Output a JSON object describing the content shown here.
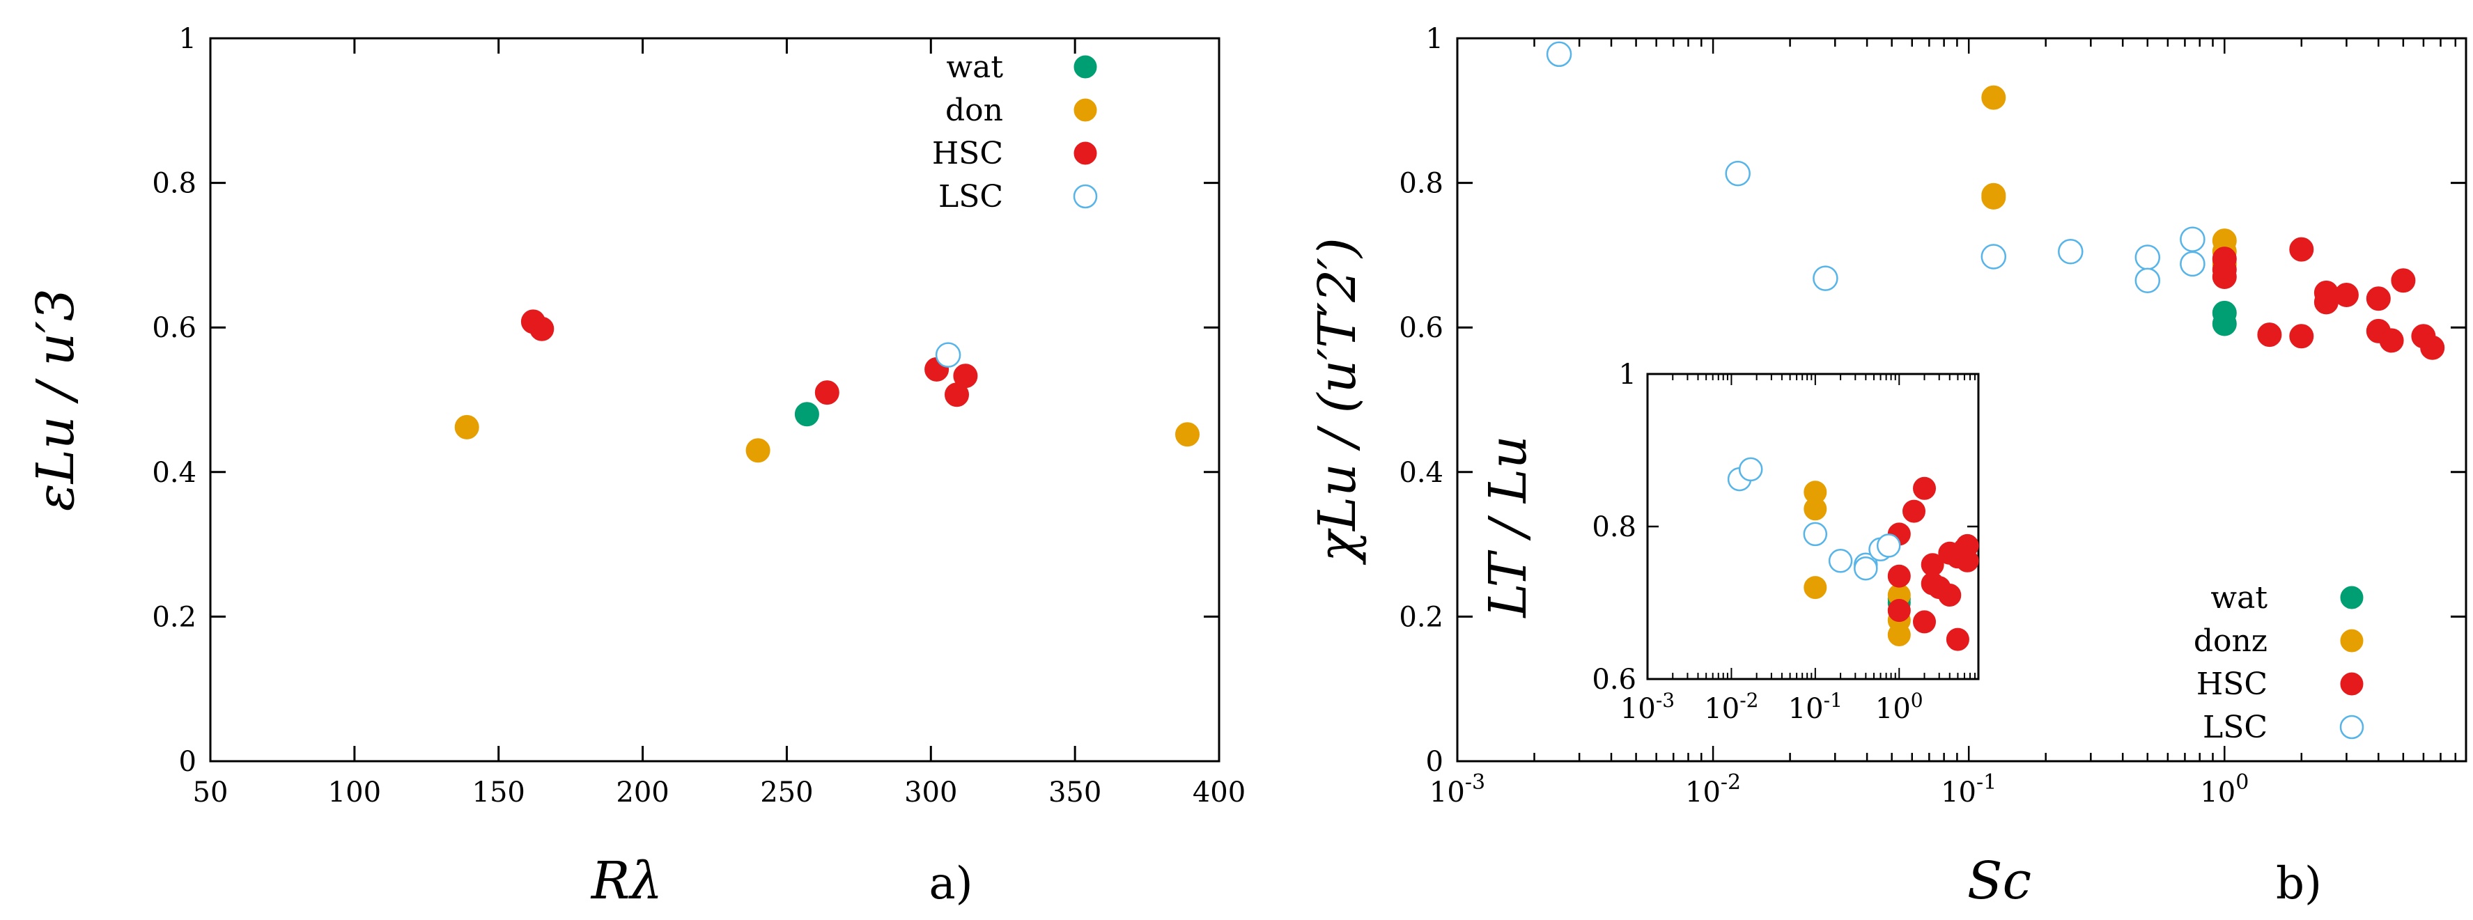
{
  "colors": {
    "wat": "#009e73",
    "don": "#e69f00",
    "HSC": "#e41a1c",
    "LSC": "#56b4e9"
  },
  "chart_data": [
    {
      "id": "a",
      "type": "scatter",
      "panel_label": "a)",
      "xlabel": "Rλ",
      "ylabel": "εLu / u′3",
      "xscale": "linear",
      "xlim": [
        50,
        400
      ],
      "ylim": [
        0,
        1
      ],
      "xticks": [
        "50",
        "100",
        "150",
        "200",
        "250",
        "300",
        "350",
        "400"
      ],
      "yticks": [
        "0",
        "0.2",
        "0.4",
        "0.6",
        "0.8",
        "1"
      ],
      "legend": {
        "position": "top-right",
        "entries": [
          "wat",
          "don",
          "HSC",
          "LSC"
        ]
      },
      "series": [
        {
          "name": "wat",
          "filled": true,
          "points": [
            [
              257,
              0.48
            ]
          ]
        },
        {
          "name": "don",
          "filled": true,
          "points": [
            [
              139,
              0.462
            ],
            [
              240,
              0.43
            ],
            [
              389,
              0.452
            ]
          ]
        },
        {
          "name": "HSC",
          "filled": true,
          "points": [
            [
              162,
              0.608
            ],
            [
              165,
              0.598
            ],
            [
              264,
              0.51
            ],
            [
              302,
              0.542
            ],
            [
              309,
              0.507
            ],
            [
              312,
              0.533
            ]
          ]
        },
        {
          "name": "LSC",
          "filled": false,
          "points": [
            [
              306,
              0.562
            ]
          ]
        }
      ]
    },
    {
      "id": "b",
      "type": "scatter",
      "panel_label": "b)",
      "xlabel": "Sc",
      "ylabel": "χLu / (u′T′2′)",
      "xscale": "log",
      "xlim": [
        0.001,
        8.8
      ],
      "ylim": [
        0,
        1
      ],
      "xticks": [
        {
          "base": "10",
          "exp": "-3",
          "v": 0.001
        },
        {
          "base": "10",
          "exp": "-2",
          "v": 0.01
        },
        {
          "base": "10",
          "exp": "-1",
          "v": 0.1
        },
        {
          "base": "10",
          "exp": "0",
          "v": 1
        }
      ],
      "yticks": [
        "0",
        "0.2",
        "0.4",
        "0.6",
        "0.8",
        "1"
      ],
      "legend": {
        "position": "bottom-right",
        "entries": [
          "wat",
          "donz",
          "HSC",
          "LSC"
        ]
      },
      "series": [
        {
          "name": "wat",
          "filled": true,
          "points": [
            [
              1,
              0.62
            ],
            [
              1,
              0.605
            ]
          ]
        },
        {
          "name": "donz",
          "filled": true,
          "points": [
            [
              0.125,
              0.918
            ],
            [
              0.125,
              0.78
            ],
            [
              0.125,
              0.783
            ],
            [
              1,
              0.72
            ],
            [
              1,
              0.705
            ],
            [
              1,
              0.688
            ]
          ]
        },
        {
          "name": "HSC",
          "filled": true,
          "points": [
            [
              1,
              0.695
            ],
            [
              1,
              0.68
            ],
            [
              1,
              0.67
            ],
            [
              1.5,
              0.59
            ],
            [
              2,
              0.708
            ],
            [
              2,
              0.588
            ],
            [
              2.5,
              0.648
            ],
            [
              2.5,
              0.635
            ],
            [
              3,
              0.645
            ],
            [
              4,
              0.64
            ],
            [
              4,
              0.595
            ],
            [
              4.5,
              0.582
            ],
            [
              5,
              0.665
            ],
            [
              6,
              0.588
            ],
            [
              6.5,
              0.572
            ]
          ]
        },
        {
          "name": "LSC",
          "filled": false,
          "points": [
            [
              0.0025,
              0.978
            ],
            [
              0.0125,
              0.813
            ],
            [
              0.0275,
              0.668
            ],
            [
              0.125,
              0.698
            ],
            [
              0.25,
              0.705
            ],
            [
              0.5,
              0.697
            ],
            [
              0.5,
              0.665
            ],
            [
              0.75,
              0.722
            ],
            [
              0.75,
              0.688
            ]
          ]
        }
      ],
      "inset": {
        "type": "scatter",
        "ylabel": "LT / Lu",
        "xscale": "log",
        "xlim": [
          0.001,
          8.8
        ],
        "ylim": [
          0.6,
          1
        ],
        "xticks": [
          {
            "base": "10",
            "exp": "-3",
            "v": 0.001
          },
          {
            "base": "10",
            "exp": "-2",
            "v": 0.01
          },
          {
            "base": "10",
            "exp": "-1",
            "v": 0.1
          },
          {
            "base": "10",
            "exp": "0",
            "v": 1
          }
        ],
        "yticks": [
          "0.6",
          "0.8",
          "1"
        ],
        "series": [
          {
            "name": "wat",
            "filled": true,
            "points": [
              [
                1,
                0.705
              ],
              [
                1,
                0.7
              ]
            ]
          },
          {
            "name": "donz",
            "filled": true,
            "points": [
              [
                0.1,
                0.845
              ],
              [
                0.1,
                0.823
              ],
              [
                0.1,
                0.72
              ],
              [
                1,
                0.71
              ],
              [
                1,
                0.677
              ],
              [
                1,
                0.658
              ]
            ]
          },
          {
            "name": "HSC",
            "filled": true,
            "points": [
              [
                1,
                0.79
              ],
              [
                1,
                0.735
              ],
              [
                1,
                0.69
              ],
              [
                1.5,
                0.82
              ],
              [
                2,
                0.85
              ],
              [
                2,
                0.675
              ],
              [
                2.5,
                0.75
              ],
              [
                2.5,
                0.725
              ],
              [
                3,
                0.72
              ],
              [
                4,
                0.765
              ],
              [
                4,
                0.71
              ],
              [
                5,
                0.76
              ],
              [
                5,
                0.652
              ],
              [
                6,
                0.77
              ],
              [
                6.5,
                0.775
              ],
              [
                6.5,
                0.755
              ]
            ]
          },
          {
            "name": "LSC",
            "filled": false,
            "points": [
              [
                0.0125,
                0.862
              ],
              [
                0.017,
                0.875
              ],
              [
                0.1,
                0.79
              ],
              [
                0.2,
                0.755
              ],
              [
                0.4,
                0.75
              ],
              [
                0.4,
                0.745
              ],
              [
                0.6,
                0.77
              ],
              [
                0.75,
                0.775
              ]
            ]
          }
        ]
      }
    }
  ]
}
